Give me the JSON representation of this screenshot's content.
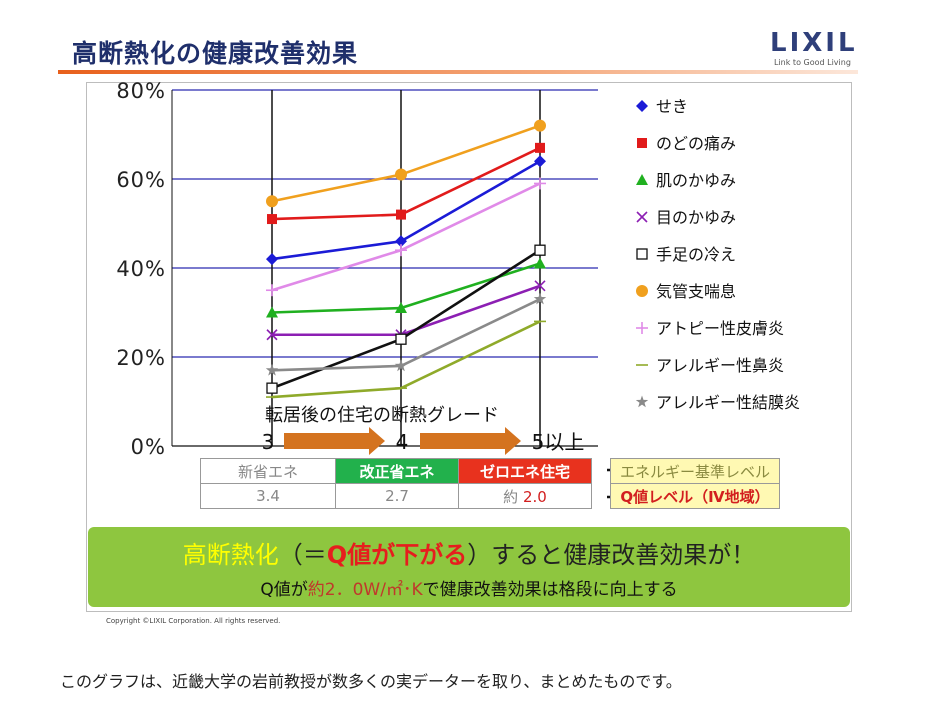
{
  "header": {
    "title": "高断熱化の健康改善効果",
    "logo_text": "LIXIL",
    "logo_tagline": "Link to Good Living"
  },
  "chart_data": {
    "type": "line",
    "categories": [
      "3",
      "4",
      "5以上"
    ],
    "xlabel": "転居後の住宅の断熱グレード",
    "ylabel": "",
    "ylim": [
      0,
      80
    ],
    "yticks": [
      "0%",
      "20%",
      "40%",
      "60%",
      "80%"
    ],
    "grid": true,
    "legend_position": "right",
    "series": [
      {
        "name": "せき",
        "values": [
          42,
          46,
          64
        ],
        "color": "#1b1bd6",
        "marker": "diamond"
      },
      {
        "name": "のどの痛み",
        "values": [
          51,
          52,
          67
        ],
        "color": "#e11b1b",
        "marker": "square"
      },
      {
        "name": "肌のかゆみ",
        "values": [
          30,
          31,
          41
        ],
        "color": "#20b020",
        "marker": "triangle"
      },
      {
        "name": "目のかゆみ",
        "values": [
          25,
          25,
          36
        ],
        "color": "#8c1fb3",
        "marker": "x"
      },
      {
        "name": "手足の冷え",
        "values": [
          13,
          24,
          44
        ],
        "color": "#111111",
        "marker": "square-open"
      },
      {
        "name": "気管支喘息",
        "values": [
          55,
          61,
          72
        ],
        "color": "#f0a01e",
        "marker": "circle"
      },
      {
        "name": "アトピー性皮膚炎",
        "values": [
          35,
          44,
          59
        ],
        "color": "#e08ae8",
        "marker": "plus"
      },
      {
        "name": "アレルギー性鼻炎",
        "values": [
          11,
          13,
          28
        ],
        "color": "#8faa2a",
        "marker": "dash"
      },
      {
        "name": "アレルギー性結膜炎",
        "values": [
          17,
          18,
          33
        ],
        "color": "#8a8a8a",
        "marker": "star"
      }
    ]
  },
  "grade_table": {
    "headers": [
      "新省エネ",
      "改正省エネ",
      "ゼロエネ住宅",
      "エネルギー基準レベル"
    ],
    "values": [
      "3.4",
      "2.7",
      "約",
      "2.0",
      "Q値レベル（Ⅳ地域）"
    ]
  },
  "banner": {
    "line1_a": "高断熱化",
    "line1_b": "（＝",
    "line1_c": "Q値が下がる",
    "line1_d": "）すると健康改善効果が！",
    "line2_a": "Q値が",
    "line2_b": "約2．0W/㎡･K",
    "line2_c": "で健康改善効果は格段に向上する"
  },
  "copyright": "Copyright ©LIXIL Corporation. All rights reserved.",
  "caption": "このグラフは、近畿大学の岩前教授が数多くの実データーを取り、まとめたものです。"
}
